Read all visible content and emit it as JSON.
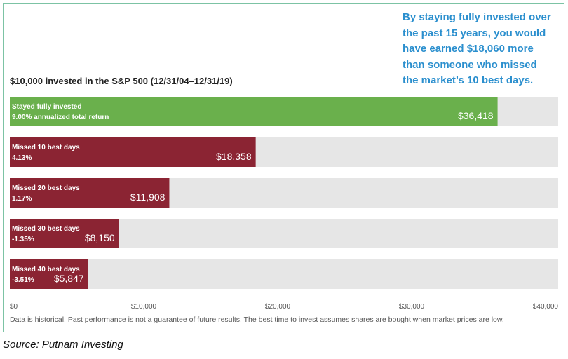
{
  "callout": {
    "lines": [
      "By staying fully invested over",
      "the past 15 years, you would",
      "have earned $18,060 more",
      "than someone who missed",
      "the market’s 10 best days."
    ]
  },
  "footer": {
    "disclaimer": "Data is historical. Past performance is not a guarantee of future results. The best time to invest assumes shares are bought when market prices are low.",
    "source": "Source: Putnam Investing"
  },
  "chart_data": {
    "type": "bar",
    "orientation": "horizontal",
    "title": "$10,000 invested in the S&P 500 (12/31/04–12/31/19)",
    "xlim": [
      0,
      40000
    ],
    "ticks": [
      {
        "value": 0,
        "label": "$0"
      },
      {
        "value": 10000,
        "label": "$10,000"
      },
      {
        "value": 20000,
        "label": "$20,000"
      },
      {
        "value": 30000,
        "label": "$30,000"
      },
      {
        "value": 40000,
        "label": "$40,000"
      }
    ],
    "bars": [
      {
        "label": "Stayed fully invested",
        "sublabel": "9.00% annualized total return",
        "value": 36418,
        "value_label": "$36,418",
        "color": "#6ab04c"
      },
      {
        "label": "Missed 10 best days",
        "sublabel": "4.13%",
        "value": 18358,
        "value_label": "$18,358",
        "color": "#8b2433"
      },
      {
        "label": "Missed 20 best days",
        "sublabel": "1.17%",
        "value": 11908,
        "value_label": "$11,908",
        "color": "#8b2433"
      },
      {
        "label": "Missed 30 best days",
        "sublabel": "-1.35%",
        "value": 8150,
        "value_label": "$8,150",
        "color": "#8b2433"
      },
      {
        "label": "Missed 40 best days",
        "sublabel": "-3.51%",
        "value": 5847,
        "value_label": "$5,847",
        "color": "#8b2433"
      }
    ],
    "track_color": "#e6e6e6",
    "grid": false
  }
}
